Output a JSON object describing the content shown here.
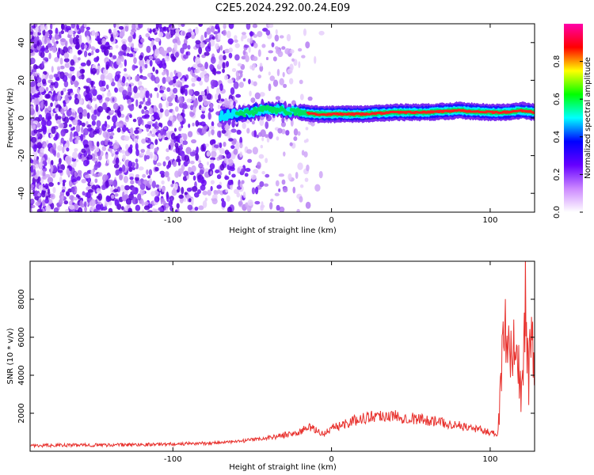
{
  "title": "C2E5.2024.292.00.24.E09",
  "chart_data": [
    {
      "type": "heatmap",
      "xlabel": "Height of straight line (km)",
      "ylabel": "Frequency (Hz)",
      "xlim": [
        -190,
        128
      ],
      "ylim": [
        -50,
        50
      ],
      "xticks": [
        -100,
        0,
        100
      ],
      "yticks": [
        -40,
        -20,
        0,
        20,
        40
      ],
      "ridge": {
        "description": "Strong narrow-band signal near 2-3 Hz from about -70 km to 128 km; scattered noise below about -40 km",
        "points": [
          {
            "x": -70,
            "y": 1
          },
          {
            "x": -60,
            "y": 2
          },
          {
            "x": -50,
            "y": 3
          },
          {
            "x": -40,
            "y": 5
          },
          {
            "x": -30,
            "y": 4
          },
          {
            "x": -20,
            "y": 3
          },
          {
            "x": -10,
            "y": 2
          },
          {
            "x": 0,
            "y": 2
          },
          {
            "x": 20,
            "y": 2
          },
          {
            "x": 40,
            "y": 3
          },
          {
            "x": 60,
            "y": 3
          },
          {
            "x": 80,
            "y": 4
          },
          {
            "x": 100,
            "y": 3
          },
          {
            "x": 110,
            "y": 3
          },
          {
            "x": 120,
            "y": 4
          },
          {
            "x": 128,
            "y": 3
          }
        ]
      },
      "colorbar": {
        "label": "Normalized spectral amplitude",
        "range": [
          0,
          1
        ],
        "ticks": [
          "0.0",
          "0.2",
          "0.4",
          "0.6",
          "0.8"
        ],
        "colors": [
          "#ffffff",
          "#cc88ff",
          "#6600ff",
          "#0000ff",
          "#00ffff",
          "#00ff00",
          "#ffff00",
          "#ff0000",
          "#ff00aa"
        ]
      }
    },
    {
      "type": "line",
      "xlabel": "Height of straight line (km)",
      "ylabel": "SNR (10 * v/v)",
      "xlim": [
        -190,
        128
      ],
      "ylim": [
        0,
        10000
      ],
      "xticks": [
        -100,
        0,
        100
      ],
      "yticks": [
        2000,
        4000,
        6000,
        8000
      ],
      "color": "#e8322e",
      "x": [
        -190,
        -160,
        -130,
        -100,
        -80,
        -60,
        -50,
        -40,
        -30,
        -20,
        -15,
        -10,
        -5,
        0,
        10,
        20,
        30,
        40,
        50,
        60,
        70,
        80,
        90,
        100,
        105,
        108,
        110,
        112,
        115,
        118,
        120,
        122,
        124,
        126,
        128
      ],
      "y": [
        300,
        320,
        340,
        380,
        420,
        500,
        600,
        700,
        850,
        1000,
        1300,
        1100,
        900,
        1200,
        1500,
        1750,
        1900,
        1850,
        1750,
        1650,
        1500,
        1350,
        1200,
        1000,
        900,
        6200,
        6500,
        6000,
        7500,
        4000,
        2500,
        9600,
        3500,
        5500,
        4500
      ]
    }
  ]
}
